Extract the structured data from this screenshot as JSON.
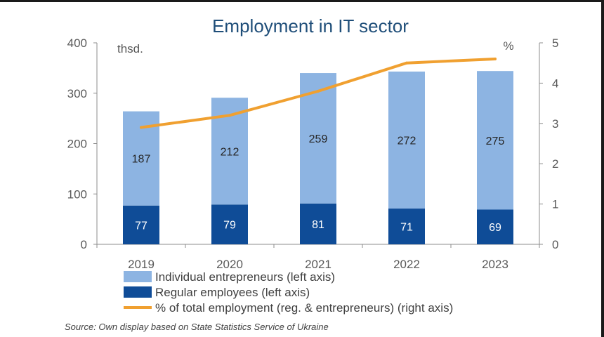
{
  "chart_data": {
    "type": "bar",
    "title": "Employment in IT sector",
    "left_unit": "thsd.",
    "right_unit": "%",
    "categories": [
      "2019",
      "2020",
      "2021",
      "2022",
      "2023"
    ],
    "series": [
      {
        "name": "Regular employees (left axis)",
        "kind": "bar",
        "stack": "main",
        "axis": "left",
        "color": "#0f4c97",
        "label_color": "#ffffff",
        "values": [
          77,
          79,
          81,
          71,
          69
        ]
      },
      {
        "name": "Individual entrepreneurs (left axis)",
        "kind": "bar",
        "stack": "main",
        "axis": "left",
        "color": "#8db4e2",
        "label_color": "#262626",
        "values": [
          187,
          212,
          259,
          272,
          275
        ]
      },
      {
        "name": "% of total employment (reg. & entrepreneurs) (right axis)",
        "kind": "line",
        "axis": "right",
        "color": "#f0a030",
        "values": [
          2.9,
          3.2,
          3.8,
          4.5,
          4.6
        ]
      }
    ],
    "left_ticks": [
      "0",
      "100",
      "200",
      "300",
      "400"
    ],
    "right_ticks": [
      "0",
      "1",
      "2",
      "3",
      "4",
      "5"
    ],
    "ylim_left": [
      0,
      400
    ],
    "ylim_right": [
      0,
      5
    ],
    "grid": false,
    "legend_position": "bottom-left"
  },
  "legend": [
    {
      "label": "Individual entrepreneurs (left axis)",
      "kind": "bar",
      "color": "#8db4e2"
    },
    {
      "label": "Regular employees (left axis)",
      "kind": "bar",
      "color": "#0f4c97"
    },
    {
      "label": "% of total employment (reg. & entrepreneurs) (right axis)",
      "kind": "line",
      "color": "#f0a030"
    }
  ],
  "source": "Source: Own display based on State Statistics Service of Ukraine"
}
